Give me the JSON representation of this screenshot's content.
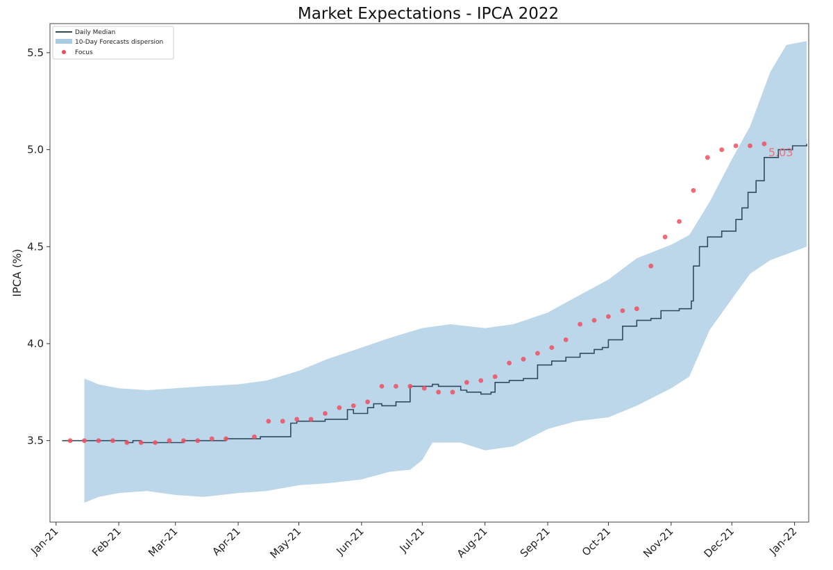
{
  "chart_data": {
    "type": "line",
    "title": "Market Expectations - IPCA 2022",
    "xlabel": "",
    "ylabel": "IPCA (%)",
    "x_axis": {
      "type": "date",
      "range": [
        "2020-12-29",
        "2022-01-08"
      ],
      "ticks": [
        {
          "date": "2021-01-01",
          "label": "Jan-21"
        },
        {
          "date": "2021-02-01",
          "label": "Feb-21"
        },
        {
          "date": "2021-03-01",
          "label": "Mar-21"
        },
        {
          "date": "2021-04-01",
          "label": "Apr-21"
        },
        {
          "date": "2021-05-01",
          "label": "May-21"
        },
        {
          "date": "2021-06-01",
          "label": "Jun-21"
        },
        {
          "date": "2021-07-01",
          "label": "Jul-21"
        },
        {
          "date": "2021-08-01",
          "label": "Aug-21"
        },
        {
          "date": "2021-09-01",
          "label": "Sep-21"
        },
        {
          "date": "2021-10-01",
          "label": "Oct-21"
        },
        {
          "date": "2021-11-01",
          "label": "Nov-21"
        },
        {
          "date": "2021-12-01",
          "label": "Dec-21"
        },
        {
          "date": "2022-01-01",
          "label": "Jan-22"
        }
      ]
    },
    "y_axis": {
      "range": [
        3.08,
        5.65
      ],
      "ticks": [
        3.5,
        4.0,
        4.5,
        5.0,
        5.5
      ],
      "tick_labels": [
        "3.5",
        "4.0",
        "4.5",
        "5.0",
        "5.5"
      ]
    },
    "grid": false,
    "legend": {
      "placement": "top-left",
      "entries": [
        {
          "label": "Daily Median",
          "kind": "line",
          "color": "#2f4a5f"
        },
        {
          "label": "10-Day Forecasts dispersion",
          "kind": "band",
          "color": "#a9cbe3"
        },
        {
          "label": "Focus",
          "kind": "marker",
          "color": "#f04a5a"
        }
      ]
    },
    "colors": {
      "median": "#2f4a5f",
      "band": "#bcd6ea",
      "focus": "#f05060",
      "last_label": "#f0707c"
    },
    "series": [
      {
        "name": "Daily Median",
        "kind": "step",
        "points": [
          [
            "2021-01-04",
            3.5
          ],
          [
            "2021-01-15",
            3.5
          ],
          [
            "2021-01-29",
            3.5
          ],
          [
            "2021-02-05",
            3.49
          ],
          [
            "2021-02-08",
            3.5
          ],
          [
            "2021-02-12",
            3.49
          ],
          [
            "2021-02-19",
            3.49
          ],
          [
            "2021-02-26",
            3.49
          ],
          [
            "2021-03-05",
            3.5
          ],
          [
            "2021-03-12",
            3.5
          ],
          [
            "2021-03-19",
            3.5
          ],
          [
            "2021-03-26",
            3.51
          ],
          [
            "2021-04-09",
            3.51
          ],
          [
            "2021-04-12",
            3.52
          ],
          [
            "2021-04-23",
            3.52
          ],
          [
            "2021-04-27",
            3.59
          ],
          [
            "2021-04-30",
            3.6
          ],
          [
            "2021-05-07",
            3.6
          ],
          [
            "2021-05-14",
            3.61
          ],
          [
            "2021-05-21",
            3.61
          ],
          [
            "2021-05-25",
            3.66
          ],
          [
            "2021-05-28",
            3.64
          ],
          [
            "2021-06-04",
            3.67
          ],
          [
            "2021-06-07",
            3.69
          ],
          [
            "2021-06-11",
            3.68
          ],
          [
            "2021-06-18",
            3.7
          ],
          [
            "2021-06-24",
            3.7
          ],
          [
            "2021-06-25",
            3.78
          ],
          [
            "2021-07-02",
            3.78
          ],
          [
            "2021-07-06",
            3.79
          ],
          [
            "2021-07-09",
            3.78
          ],
          [
            "2021-07-16",
            3.78
          ],
          [
            "2021-07-20",
            3.76
          ],
          [
            "2021-07-23",
            3.75
          ],
          [
            "2021-07-30",
            3.74
          ],
          [
            "2021-08-04",
            3.75
          ],
          [
            "2021-08-06",
            3.8
          ],
          [
            "2021-08-13",
            3.81
          ],
          [
            "2021-08-20",
            3.82
          ],
          [
            "2021-08-25",
            3.82
          ],
          [
            "2021-08-27",
            3.89
          ],
          [
            "2021-09-03",
            3.91
          ],
          [
            "2021-09-10",
            3.93
          ],
          [
            "2021-09-17",
            3.95
          ],
          [
            "2021-09-24",
            3.97
          ],
          [
            "2021-09-28",
            3.98
          ],
          [
            "2021-10-01",
            4.02
          ],
          [
            "2021-10-08",
            4.09
          ],
          [
            "2021-10-15",
            4.12
          ],
          [
            "2021-10-22",
            4.13
          ],
          [
            "2021-10-27",
            4.17
          ],
          [
            "2021-10-29",
            4.17
          ],
          [
            "2021-11-05",
            4.18
          ],
          [
            "2021-11-11",
            4.22
          ],
          [
            "2021-11-12",
            4.4
          ],
          [
            "2021-11-15",
            4.5
          ],
          [
            "2021-11-19",
            4.55
          ],
          [
            "2021-11-26",
            4.58
          ],
          [
            "2021-12-03",
            4.64
          ],
          [
            "2021-12-06",
            4.7
          ],
          [
            "2021-12-09",
            4.78
          ],
          [
            "2021-12-13",
            4.84
          ],
          [
            "2021-12-17",
            4.96
          ],
          [
            "2021-12-24",
            5.0
          ],
          [
            "2021-12-28",
            5.0
          ],
          [
            "2021-12-31",
            5.02
          ],
          [
            "2022-01-07",
            5.03
          ]
        ]
      },
      {
        "name": "10-Day Forecasts dispersion",
        "kind": "band",
        "upper": [
          [
            "2021-01-15",
            3.82
          ],
          [
            "2021-01-22",
            3.79
          ],
          [
            "2021-02-01",
            3.77
          ],
          [
            "2021-02-15",
            3.76
          ],
          [
            "2021-03-01",
            3.77
          ],
          [
            "2021-03-15",
            3.78
          ],
          [
            "2021-04-01",
            3.79
          ],
          [
            "2021-04-15",
            3.81
          ],
          [
            "2021-05-01",
            3.86
          ],
          [
            "2021-05-15",
            3.92
          ],
          [
            "2021-06-01",
            3.98
          ],
          [
            "2021-06-15",
            4.03
          ],
          [
            "2021-07-01",
            4.08
          ],
          [
            "2021-07-15",
            4.1
          ],
          [
            "2021-08-01",
            4.08
          ],
          [
            "2021-08-15",
            4.1
          ],
          [
            "2021-09-01",
            4.16
          ],
          [
            "2021-09-15",
            4.24
          ],
          [
            "2021-10-01",
            4.33
          ],
          [
            "2021-10-15",
            4.44
          ],
          [
            "2021-11-01",
            4.51
          ],
          [
            "2021-11-10",
            4.56
          ],
          [
            "2021-11-20",
            4.73
          ],
          [
            "2021-12-01",
            4.95
          ],
          [
            "2021-12-10",
            5.12
          ],
          [
            "2021-12-20",
            5.4
          ],
          [
            "2021-12-28",
            5.54
          ],
          [
            "2022-01-07",
            5.56
          ]
        ],
        "lower": [
          [
            "2021-01-15",
            3.18
          ],
          [
            "2021-01-22",
            3.21
          ],
          [
            "2021-02-01",
            3.23
          ],
          [
            "2021-02-15",
            3.24
          ],
          [
            "2021-03-01",
            3.22
          ],
          [
            "2021-03-15",
            3.21
          ],
          [
            "2021-04-01",
            3.23
          ],
          [
            "2021-04-15",
            3.24
          ],
          [
            "2021-05-01",
            3.27
          ],
          [
            "2021-05-15",
            3.28
          ],
          [
            "2021-06-01",
            3.3
          ],
          [
            "2021-06-15",
            3.34
          ],
          [
            "2021-06-25",
            3.35
          ],
          [
            "2021-07-01",
            3.4
          ],
          [
            "2021-07-06",
            3.49
          ],
          [
            "2021-07-20",
            3.49
          ],
          [
            "2021-08-01",
            3.45
          ],
          [
            "2021-08-15",
            3.47
          ],
          [
            "2021-09-01",
            3.56
          ],
          [
            "2021-09-15",
            3.6
          ],
          [
            "2021-10-01",
            3.62
          ],
          [
            "2021-10-15",
            3.68
          ],
          [
            "2021-11-01",
            3.77
          ],
          [
            "2021-11-10",
            3.83
          ],
          [
            "2021-11-20",
            4.07
          ],
          [
            "2021-12-01",
            4.23
          ],
          [
            "2021-12-10",
            4.36
          ],
          [
            "2021-12-20",
            4.43
          ],
          [
            "2022-01-07",
            4.5
          ]
        ]
      },
      {
        "name": "Focus",
        "kind": "scatter",
        "points": [
          [
            "2021-01-08",
            3.5
          ],
          [
            "2021-01-15",
            3.5
          ],
          [
            "2021-01-22",
            3.5
          ],
          [
            "2021-01-29",
            3.5
          ],
          [
            "2021-02-05",
            3.49
          ],
          [
            "2021-02-12",
            3.49
          ],
          [
            "2021-02-19",
            3.49
          ],
          [
            "2021-02-26",
            3.5
          ],
          [
            "2021-03-05",
            3.5
          ],
          [
            "2021-03-12",
            3.5
          ],
          [
            "2021-03-19",
            3.51
          ],
          [
            "2021-03-26",
            3.51
          ],
          [
            "2021-04-09",
            3.52
          ],
          [
            "2021-04-16",
            3.6
          ],
          [
            "2021-04-23",
            3.6
          ],
          [
            "2021-04-30",
            3.61
          ],
          [
            "2021-05-07",
            3.61
          ],
          [
            "2021-05-14",
            3.64
          ],
          [
            "2021-05-21",
            3.67
          ],
          [
            "2021-05-28",
            3.68
          ],
          [
            "2021-06-04",
            3.7
          ],
          [
            "2021-06-11",
            3.78
          ],
          [
            "2021-06-18",
            3.78
          ],
          [
            "2021-06-25",
            3.78
          ],
          [
            "2021-07-02",
            3.77
          ],
          [
            "2021-07-09",
            3.75
          ],
          [
            "2021-07-16",
            3.75
          ],
          [
            "2021-07-23",
            3.8
          ],
          [
            "2021-07-30",
            3.81
          ],
          [
            "2021-08-06",
            3.83
          ],
          [
            "2021-08-13",
            3.9
          ],
          [
            "2021-08-20",
            3.92
          ],
          [
            "2021-08-27",
            3.95
          ],
          [
            "2021-09-03",
            3.98
          ],
          [
            "2021-09-10",
            4.02
          ],
          [
            "2021-09-17",
            4.1
          ],
          [
            "2021-09-24",
            4.12
          ],
          [
            "2021-10-01",
            4.14
          ],
          [
            "2021-10-08",
            4.17
          ],
          [
            "2021-10-15",
            4.18
          ],
          [
            "2021-10-22",
            4.4
          ],
          [
            "2021-10-29",
            4.55
          ],
          [
            "2021-11-05",
            4.63
          ],
          [
            "2021-11-12",
            4.79
          ],
          [
            "2021-11-19",
            4.96
          ],
          [
            "2021-11-26",
            5.0
          ],
          [
            "2021-12-03",
            5.02
          ],
          [
            "2021-12-10",
            5.02
          ],
          [
            "2021-12-17",
            5.03
          ]
        ]
      }
    ],
    "annotations": [
      {
        "text": "5.03",
        "at": [
          "2021-12-17",
          5.03
        ]
      }
    ]
  }
}
